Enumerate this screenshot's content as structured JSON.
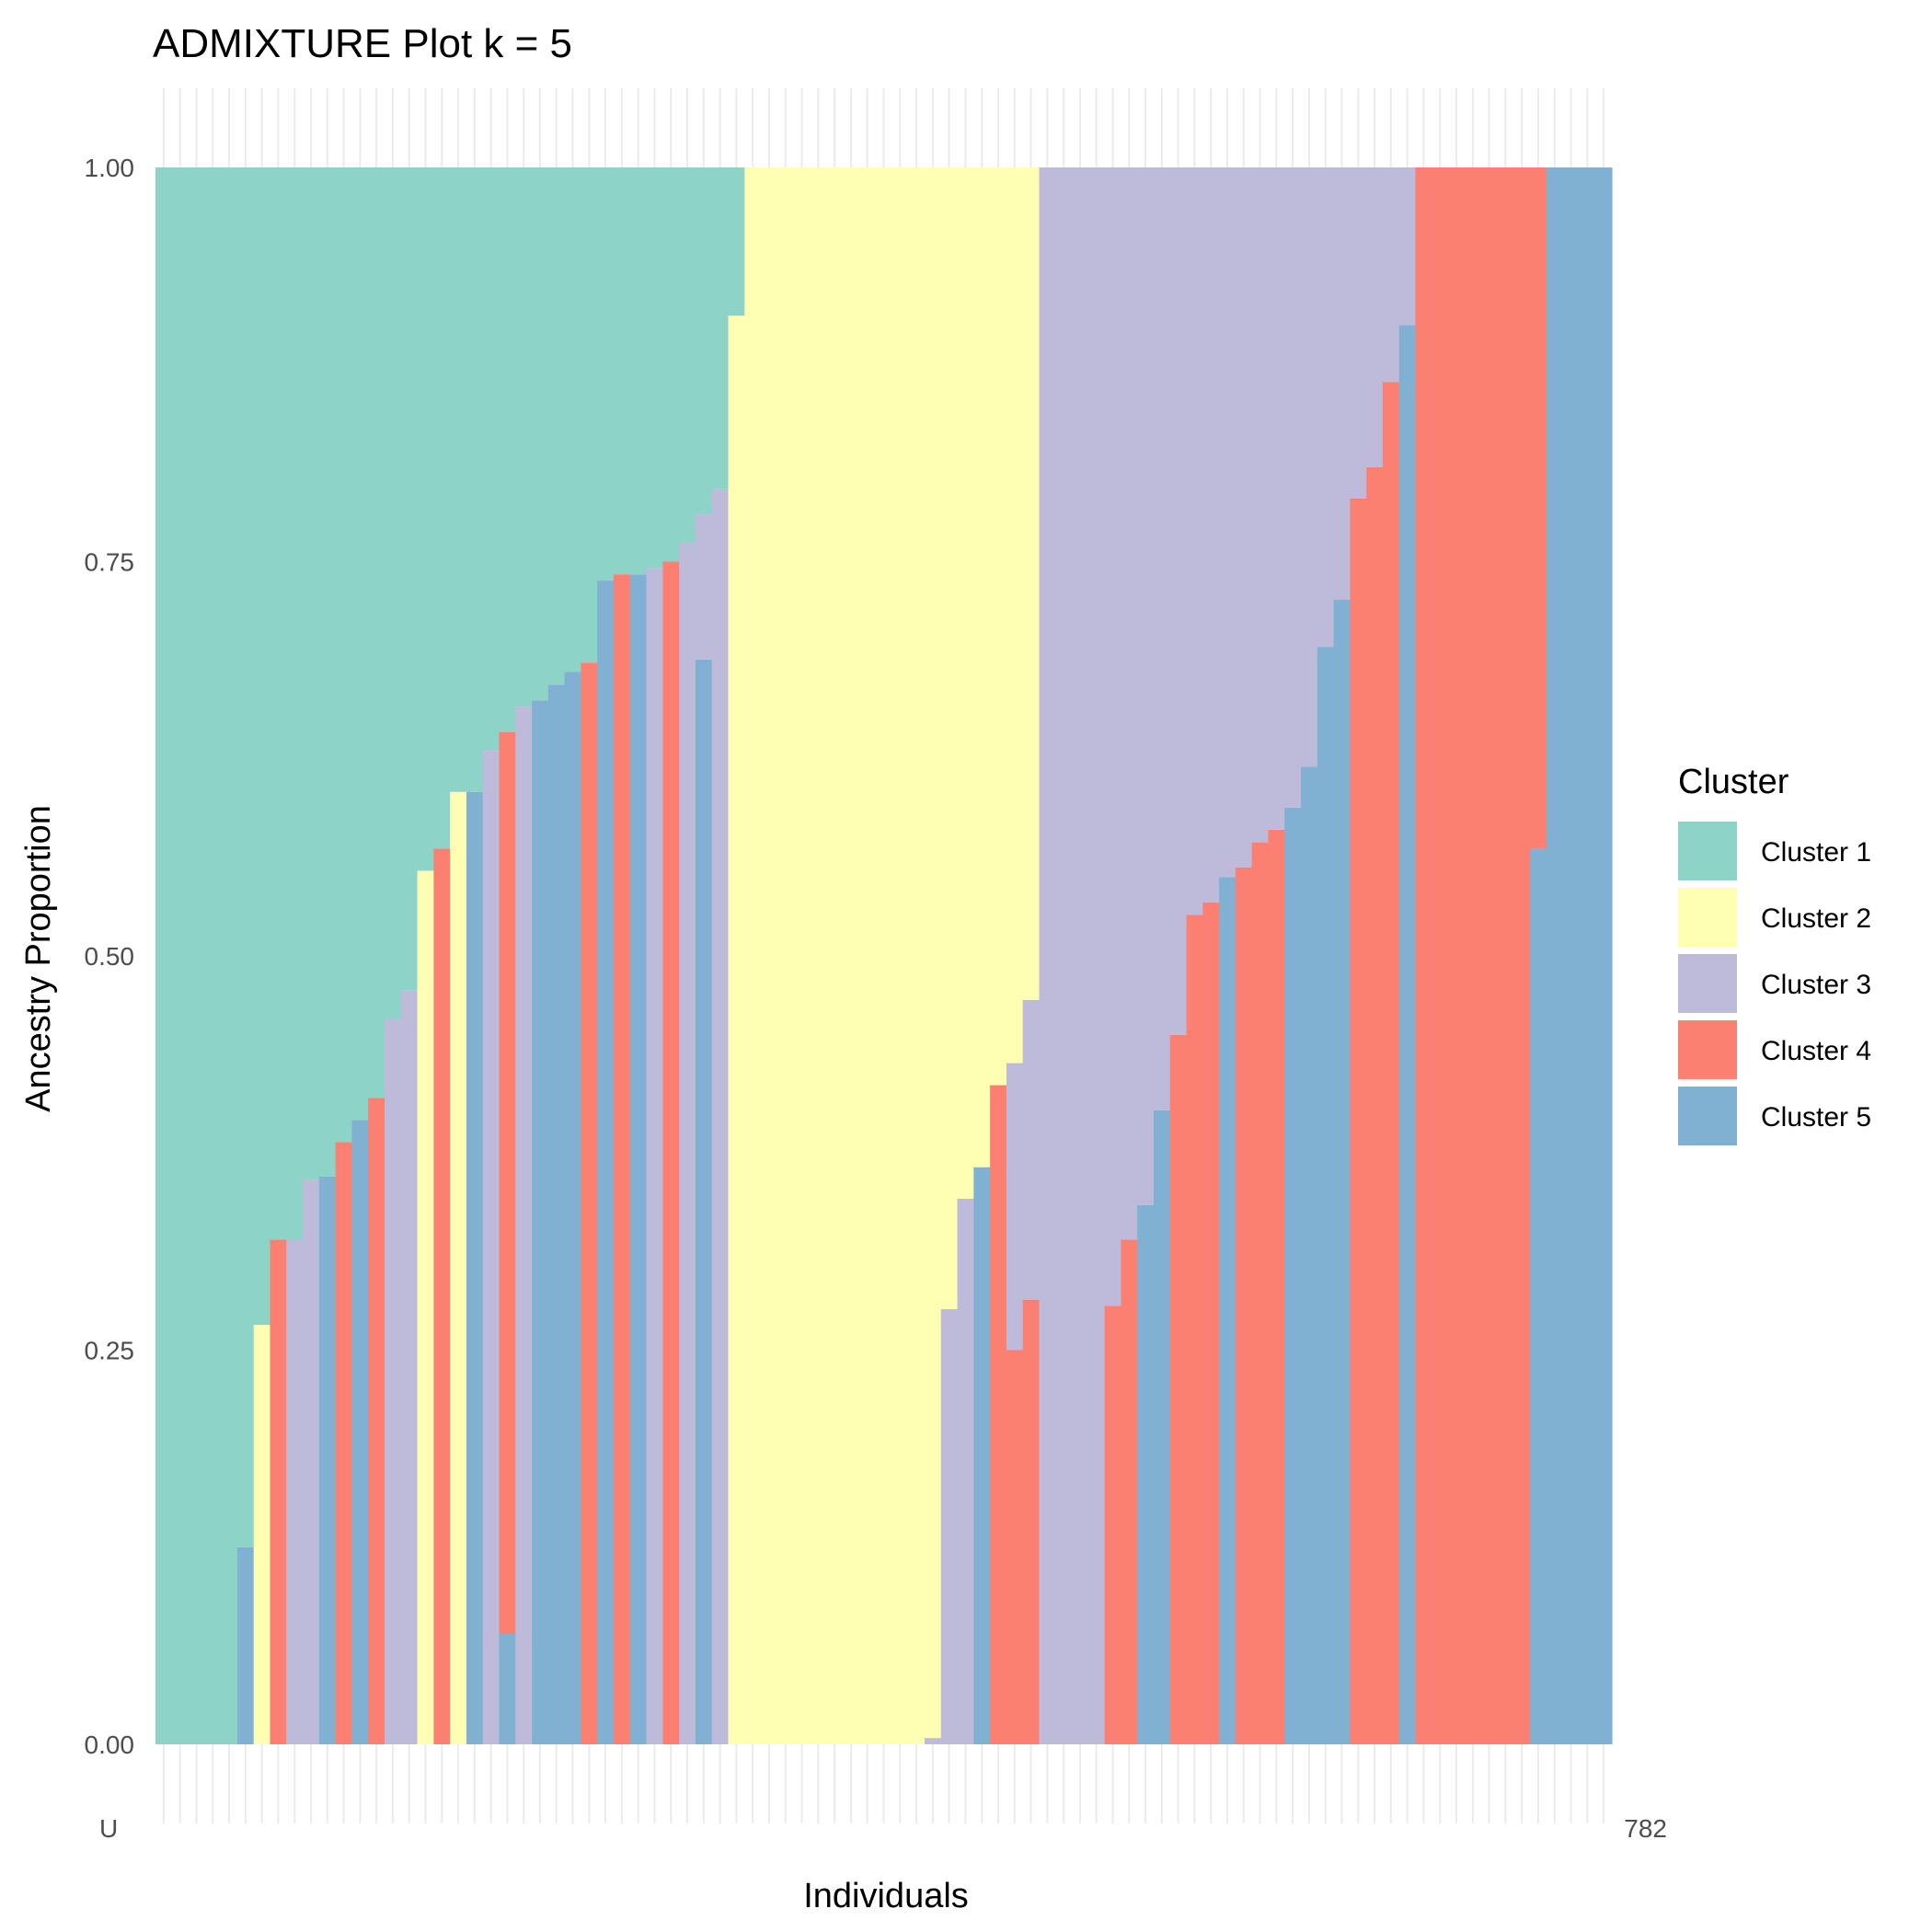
{
  "chart_data": {
    "type": "bar",
    "stacked": true,
    "title": "ADMIXTURE Plot k = 5",
    "xlabel": "Individuals",
    "ylabel": "Ancestry Proportion",
    "ylim": [
      0,
      1
    ],
    "yticks": [
      "0.00",
      "0.25",
      "0.50",
      "0.75",
      "1.00"
    ],
    "grid": true,
    "legend": {
      "title": "Cluster",
      "position": "right",
      "entries": [
        "Cluster 1",
        "Cluster 2",
        "Cluster 3",
        "Cluster 4",
        "Cluster 5"
      ]
    },
    "colors": [
      "#8dd3c7",
      "#ffffb3",
      "#bebada",
      "#fb8072",
      "#80b1d3"
    ],
    "stack_order": [
      "Cluster 5",
      "Cluster 4",
      "Cluster 3",
      "Cluster 2",
      "Cluster 1"
    ],
    "n_individuals": 89,
    "x_tick_label_first": "U",
    "x_tick_label_last": "782",
    "bars": [
      [
        1.0,
        0,
        0,
        0,
        0
      ],
      [
        1.0,
        0,
        0,
        0,
        0
      ],
      [
        1.0,
        0,
        0,
        0,
        0
      ],
      [
        1.0,
        0,
        0,
        0,
        0
      ],
      [
        1.0,
        0,
        0,
        0,
        0
      ],
      [
        0.875,
        0,
        0,
        0,
        0.125
      ],
      [
        0.734,
        0.266,
        0,
        0,
        0
      ],
      [
        0.68,
        0,
        0,
        0.32,
        0
      ],
      [
        0.68,
        0,
        0.32,
        0,
        0
      ],
      [
        0.642,
        0,
        0.358,
        0,
        0
      ],
      [
        0.64,
        0,
        0,
        0,
        0.36
      ],
      [
        0.618,
        0,
        0,
        0.382,
        0
      ],
      [
        0.604,
        0,
        0,
        0,
        0.396
      ],
      [
        0.59,
        0,
        0,
        0.41,
        0
      ],
      [
        0.54,
        0,
        0.46,
        0,
        0
      ],
      [
        0.522,
        0,
        0.478,
        0,
        0
      ],
      [
        0.446,
        0.554,
        0,
        0,
        0
      ],
      [
        0.432,
        0,
        0,
        0.568,
        0
      ],
      [
        0.396,
        0.604,
        0,
        0,
        0
      ],
      [
        0.396,
        0,
        0,
        0,
        0.604
      ],
      [
        0.37,
        0,
        0.63,
        0,
        0
      ],
      [
        0.358,
        0,
        0,
        0.572,
        0.07
      ],
      [
        0.342,
        0,
        0.658,
        0,
        0
      ],
      [
        0.338,
        0,
        0,
        0,
        0.662
      ],
      [
        0.328,
        0,
        0,
        0,
        0.672
      ],
      [
        0.32,
        0,
        0,
        0,
        0.68
      ],
      [
        0.314,
        0,
        0,
        0.686,
        0
      ],
      [
        0.262,
        0,
        0,
        0,
        0.738
      ],
      [
        0.258,
        0,
        0,
        0.742,
        0
      ],
      [
        0.258,
        0,
        0,
        0,
        0.742
      ],
      [
        0.254,
        0,
        0.746,
        0,
        0
      ],
      [
        0.25,
        0,
        0,
        0.75,
        0
      ],
      [
        0.238,
        0,
        0.762,
        0,
        0
      ],
      [
        0.22,
        0,
        0.092,
        0,
        0.688
      ],
      [
        0.204,
        0,
        0.796,
        0,
        0
      ],
      [
        0.094,
        0.906,
        0,
        0,
        0
      ],
      [
        0,
        1.0,
        0,
        0,
        0
      ],
      [
        0,
        1.0,
        0,
        0,
        0
      ],
      [
        0,
        1.0,
        0,
        0,
        0
      ],
      [
        0,
        1.0,
        0,
        0,
        0
      ],
      [
        0,
        1.0,
        0,
        0,
        0
      ],
      [
        0,
        1.0,
        0,
        0,
        0
      ],
      [
        0,
        1.0,
        0,
        0,
        0
      ],
      [
        0,
        1.0,
        0,
        0,
        0
      ],
      [
        0,
        1.0,
        0,
        0,
        0
      ],
      [
        0,
        1.0,
        0,
        0,
        0
      ],
      [
        0,
        1.0,
        0,
        0,
        0
      ],
      [
        0,
        0.996,
        0.004,
        0,
        0
      ],
      [
        0,
        0.724,
        0.276,
        0,
        0
      ],
      [
        0,
        0.654,
        0.346,
        0,
        0
      ],
      [
        0,
        0.634,
        0,
        0,
        0.366
      ],
      [
        0,
        0.582,
        0,
        0.418,
        0
      ],
      [
        0,
        0.568,
        0.182,
        0.25,
        0
      ],
      [
        0,
        0.528,
        0.19,
        0.282,
        0
      ],
      [
        0,
        0,
        1.0,
        0,
        0
      ],
      [
        0,
        0,
        1.0,
        0,
        0
      ],
      [
        0,
        0,
        1.0,
        0,
        0
      ],
      [
        0,
        0,
        1.0,
        0,
        0
      ],
      [
        0,
        0,
        0.722,
        0.278,
        0
      ],
      [
        0,
        0,
        0.68,
        0.32,
        0
      ],
      [
        0,
        0,
        0.658,
        0,
        0.342
      ],
      [
        0,
        0,
        0.598,
        0,
        0.402
      ],
      [
        0,
        0,
        0.55,
        0.45,
        0
      ],
      [
        0,
        0,
        0.474,
        0.526,
        0
      ],
      [
        0,
        0,
        0.466,
        0.534,
        0
      ],
      [
        0,
        0,
        0.45,
        0,
        0.55
      ],
      [
        0,
        0,
        0.444,
        0.556,
        0
      ],
      [
        0,
        0,
        0.428,
        0.572,
        0
      ],
      [
        0,
        0,
        0.42,
        0.58,
        0
      ],
      [
        0,
        0,
        0.406,
        0,
        0.594
      ],
      [
        0,
        0,
        0.38,
        0,
        0.62
      ],
      [
        0,
        0,
        0.304,
        0,
        0.696
      ],
      [
        0,
        0,
        0.274,
        0,
        0.726
      ],
      [
        0,
        0,
        0.21,
        0.79,
        0
      ],
      [
        0,
        0,
        0.19,
        0.81,
        0
      ],
      [
        0,
        0,
        0.136,
        0.864,
        0
      ],
      [
        0,
        0,
        0.1,
        0,
        0.9
      ],
      [
        0,
        0,
        0,
        1.0,
        0
      ],
      [
        0,
        0,
        0,
        1.0,
        0
      ],
      [
        0,
        0,
        0,
        1.0,
        0
      ],
      [
        0,
        0,
        0,
        1.0,
        0
      ],
      [
        0,
        0,
        0,
        1.0,
        0
      ],
      [
        0,
        0,
        0,
        1.0,
        0
      ],
      [
        0,
        0,
        0,
        1.0,
        0
      ],
      [
        0,
        0,
        0,
        0.432,
        0.568
      ],
      [
        0,
        0,
        0,
        0,
        1.0
      ],
      [
        0,
        0,
        0,
        0,
        1.0
      ],
      [
        0,
        0,
        0,
        0,
        1.0
      ],
      [
        0,
        0,
        0,
        0,
        1.0
      ]
    ]
  }
}
